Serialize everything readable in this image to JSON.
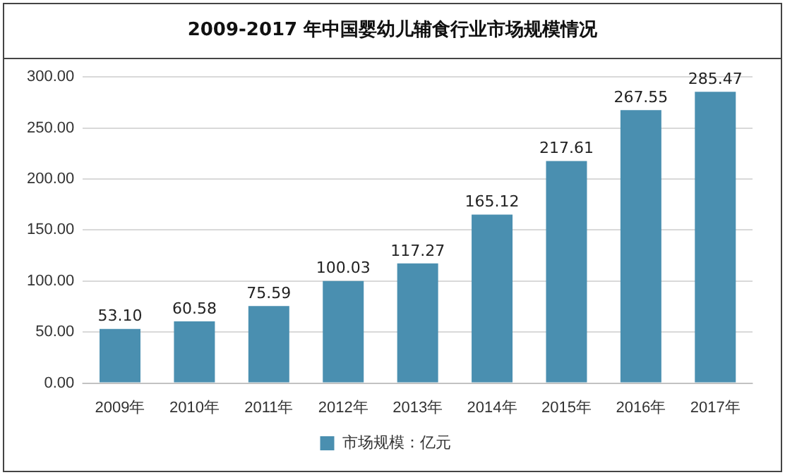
{
  "chart_data": {
    "type": "bar",
    "title": "2009-2017 年中国婴幼儿辅食行业市场规模情况",
    "categories": [
      "2009年",
      "2010年",
      "2011年",
      "2012年",
      "2013年",
      "2014年",
      "2015年",
      "2016年",
      "2017年"
    ],
    "series": [
      {
        "name": "市场规模：亿元",
        "color": "#4a8fb0",
        "values": [
          53.1,
          60.58,
          75.59,
          100.03,
          117.27,
          165.12,
          217.61,
          267.55,
          285.47
        ],
        "value_labels": [
          "53.10",
          "60.58",
          "75.59",
          "100.03",
          "117.27",
          "165.12",
          "217.61",
          "267.55",
          "285.47"
        ]
      }
    ],
    "ylim": [
      0,
      300
    ],
    "yticks": [
      {
        "value": 0,
        "label": "0.00"
      },
      {
        "value": 50,
        "label": "50.00"
      },
      {
        "value": 100,
        "label": "100.00"
      },
      {
        "value": 150,
        "label": "150.00"
      },
      {
        "value": 200,
        "label": "200.00"
      },
      {
        "value": 250,
        "label": "250.00"
      },
      {
        "value": 300,
        "label": "300.00"
      }
    ],
    "grid": "y",
    "legend": "bottom"
  }
}
